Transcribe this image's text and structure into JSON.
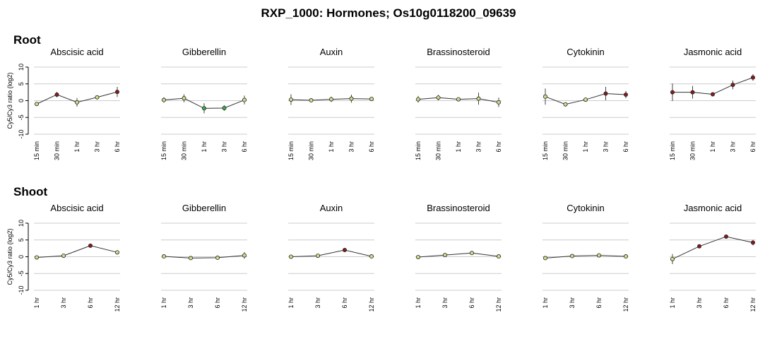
{
  "title": "RXP_1000: Hormones; Os10g0118200_09639",
  "sections": [
    {
      "label": "Root"
    },
    {
      "label": "Shoot"
    }
  ],
  "colors": {
    "grid": "#cccccc",
    "line": "#333333",
    "up": "#8b1a1a",
    "down": "#3cb43c",
    "neutral": "#d9d98a"
  },
  "chart_data": [
    {
      "group": "Root",
      "type": "line",
      "ylabel": "Cy5/Cy3 ratio (log2)",
      "ylim": [
        -10,
        10
      ],
      "yticks": [
        "10",
        "5",
        "0",
        "-5",
        "-10"
      ],
      "grid": true,
      "x": [
        "15 min",
        "30 min",
        "1 hr",
        "3 hr",
        "6 hr"
      ],
      "panels": [
        {
          "title": "Abscisic acid",
          "values": [
            -1,
            1.8,
            -0.5,
            1,
            2.6
          ],
          "errors": [
            0.3,
            0.8,
            1.3,
            0.4,
            1.5
          ]
        },
        {
          "title": "Gibberellin",
          "values": [
            0.2,
            0.7,
            -2.3,
            -2.2,
            0.2
          ],
          "errors": [
            0.8,
            1.2,
            1.5,
            0.8,
            1.3
          ]
        },
        {
          "title": "Auxin",
          "values": [
            0.3,
            0.1,
            0.4,
            0.6,
            0.5
          ],
          "errors": [
            1.6,
            0.3,
            0.8,
            1.2,
            0.6
          ]
        },
        {
          "title": "Brassinosteroid",
          "values": [
            0.4,
            0.9,
            0.4,
            0.6,
            -0.5
          ],
          "errors": [
            1,
            0.8,
            0.4,
            1.8,
            1.4
          ]
        },
        {
          "title": "Cytokinin",
          "values": [
            1.2,
            -1.1,
            0.3,
            2.1,
            1.8
          ],
          "errors": [
            2.4,
            0.5,
            0.3,
            2,
            1.1
          ]
        },
        {
          "title": "Jasmonic acid",
          "values": [
            2.5,
            2.5,
            1.9,
            4.7,
            6.9
          ],
          "errors": [
            2.6,
            1.9,
            0.3,
            1.3,
            1
          ]
        }
      ]
    },
    {
      "group": "Shoot",
      "type": "line",
      "ylabel": "Cy5/Cy3 ratio (log2)",
      "ylim": [
        -10,
        10
      ],
      "yticks": [
        "10",
        "5",
        "0",
        "-5",
        "-10"
      ],
      "grid": true,
      "x": [
        "1 hr",
        "3 hr",
        "6 hr",
        "12 hr"
      ],
      "panels": [
        {
          "title": "Abscisic acid",
          "values": [
            -0.2,
            0.3,
            3.3,
            1.3
          ],
          "errors": [
            0.2,
            0.2,
            0.3,
            0.4
          ]
        },
        {
          "title": "Gibberellin",
          "values": [
            0.1,
            -0.4,
            -0.3,
            0.4
          ],
          "errors": [
            0.2,
            0.3,
            0.2,
            1
          ]
        },
        {
          "title": "Auxin",
          "values": [
            0,
            0.3,
            2,
            0.1
          ],
          "errors": [
            0.2,
            0.3,
            0.3,
            0.2
          ]
        },
        {
          "title": "Brassinosteroid",
          "values": [
            -0.1,
            0.5,
            1.1,
            0.1
          ],
          "errors": [
            0.2,
            0.3,
            0.3,
            0.2
          ]
        },
        {
          "title": "Cytokinin",
          "values": [
            -0.4,
            0.2,
            0.4,
            0.1
          ],
          "errors": [
            0.3,
            0.2,
            0.2,
            0.2
          ]
        },
        {
          "title": "Jasmonic acid",
          "values": [
            -0.7,
            3.1,
            6,
            4.2
          ],
          "errors": [
            1.5,
            0.3,
            0.3,
            0.8
          ]
        }
      ]
    }
  ]
}
